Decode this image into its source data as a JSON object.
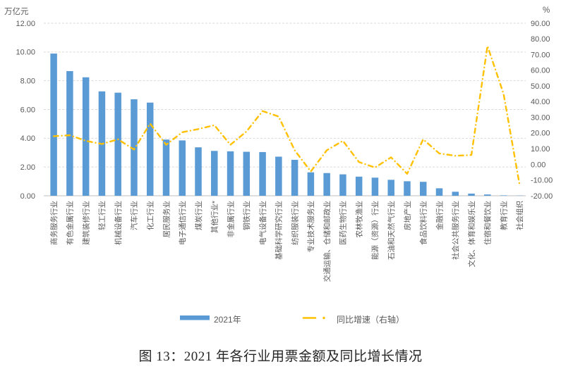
{
  "chart_data": {
    "type": "bar",
    "combo": "bar+line dual axis",
    "title": "图 13：2021 年各行业用票金额及同比增长情况",
    "categories": [
      "商务服务行业",
      "有色金属行业",
      "建筑装修行业",
      "轻工行业",
      "机械设备行业",
      "汽车行业",
      "化工行业",
      "居民服务业",
      "电子通信行业",
      "煤炭行业",
      "其他行业*",
      "非金属行业",
      "钢铁行业",
      "电气设备行业",
      "基础科学研究行业",
      "纺织服装行业",
      "专业技术服务业",
      "交通运输、仓储和邮政业",
      "医药生物行业",
      "农林牧渔业",
      "能源（资源）行业",
      "石油和天然气行业",
      "房地产业",
      "食品饮料行业",
      "金融行业",
      "社会公共服务行业",
      "文化、体育和娱乐业",
      "住宿和餐饮业",
      "教育行业",
      "社会组织"
    ],
    "series": [
      {
        "name": "2021年",
        "type": "bar",
        "axis": "left",
        "color": "#5B9BD5",
        "values": [
          9.89,
          8.67,
          8.24,
          7.26,
          7.17,
          6.71,
          6.48,
          3.91,
          3.85,
          3.37,
          3.12,
          3.09,
          3.06,
          3.04,
          2.72,
          2.5,
          1.63,
          1.58,
          1.49,
          1.33,
          1.26,
          1.11,
          1.01,
          0.97,
          0.52,
          0.28,
          0.15,
          0.09,
          0.03,
          0.01
        ]
      },
      {
        "name": "同比增速（右轴）",
        "type": "line",
        "axis": "right",
        "color": "#FFC000",
        "dash_style": "dash-dot",
        "values": [
          18.0,
          18.6,
          15.0,
          13.0,
          16.0,
          9.5,
          26.0,
          12.5,
          20.5,
          22.5,
          25.0,
          12.5,
          21.0,
          34.0,
          30.5,
          9.0,
          -4.5,
          9.0,
          15.0,
          1.5,
          -2.0,
          4.5,
          -6.0,
          16.0,
          7.0,
          5.5,
          6.0,
          75.5,
          45.0,
          -13.0
        ]
      }
    ],
    "left_axis": {
      "title": "万亿元",
      "min": 0,
      "max": 12,
      "tick_step": 2,
      "tick_labels": [
        "0.00",
        "2.00",
        "4.00",
        "6.00",
        "8.00",
        "10.00",
        "12.00"
      ]
    },
    "right_axis": {
      "title": "%",
      "min": -20,
      "max": 90,
      "tick_step": 10,
      "tick_labels": [
        "-20.00",
        "-10.00",
        "0.00",
        "10.00",
        "20.00",
        "30.00",
        "40.00",
        "50.00",
        "60.00",
        "70.00",
        "80.00",
        "90.00"
      ]
    },
    "grid": "horizontal dashed",
    "grid_color": "#D9D9D9",
    "axis_line_color": "#BFBFBF",
    "tick_label_color": "#595959",
    "legend_position": "bottom"
  }
}
